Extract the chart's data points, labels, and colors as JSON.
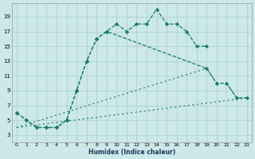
{
  "background_color": "#cce8e8",
  "grid_color": "#aacccc",
  "line_color": "#1a7a6e",
  "xlabel": "Humidex (Indice chaleur)",
  "xlim": [
    -0.5,
    23.5
  ],
  "ylim": [
    2.0,
    20.8
  ],
  "xticks": [
    0,
    1,
    2,
    3,
    4,
    5,
    6,
    7,
    8,
    9,
    10,
    11,
    12,
    13,
    14,
    15,
    16,
    17,
    18,
    19,
    20,
    21,
    22,
    23
  ],
  "yticks": [
    3,
    5,
    7,
    9,
    11,
    13,
    15,
    17,
    19
  ],
  "line1_x": [
    0,
    1,
    2,
    3,
    4,
    5,
    6,
    7,
    8,
    9,
    10,
    11,
    12,
    13,
    14,
    15,
    16,
    17,
    18,
    19
  ],
  "line1_y": [
    6,
    5,
    4,
    4,
    4,
    5,
    9,
    13,
    16,
    17,
    18,
    17,
    18,
    18,
    20,
    18,
    18,
    17,
    15,
    15
  ],
  "line2_x": [
    0,
    1,
    2,
    3,
    4,
    5,
    6,
    7,
    8,
    9,
    19,
    20,
    21,
    22,
    23
  ],
  "line2_y": [
    6,
    5,
    4,
    4,
    4,
    5,
    9,
    13,
    16,
    17,
    12,
    10,
    10,
    8,
    8
  ],
  "line3_x": [
    0,
    23
  ],
  "line3_y": [
    4,
    8
  ],
  "line4_x": [
    0,
    19,
    20,
    21,
    22,
    23
  ],
  "line4_y": [
    4,
    12,
    10,
    10,
    8,
    8
  ],
  "xlabel_fontsize": 5.5,
  "tick_fontsize_x": 4.5,
  "tick_fontsize_y": 5.0
}
